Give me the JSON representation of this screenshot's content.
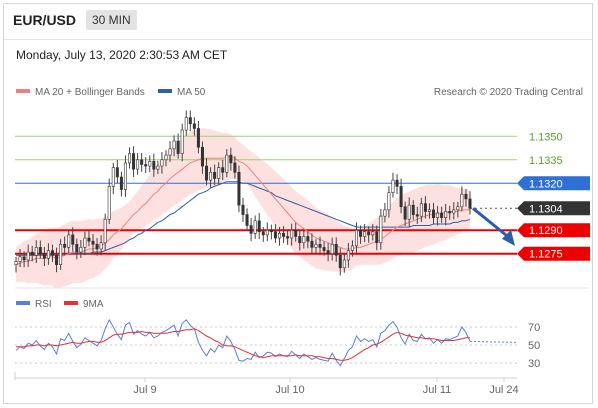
{
  "header": {
    "pair": "EUR/USD",
    "timeframe": "30 MIN",
    "datetime": "Monday, July 13, 2020 2:30:53 AM CET"
  },
  "colors": {
    "ma20": "#f08080",
    "ma50": "#2f5fa8",
    "bands": "#fcd5d5",
    "green": "#9cd36f",
    "blue_line": "#2f6fd6",
    "red_line": "#ee0000",
    "arrow": "#2a5fa8",
    "rsi": "#5a7fd8",
    "rsi_ma": "#e33333"
  },
  "chart_data": [
    {
      "type": "candlestick",
      "legend": [
        "MA 20 + Bollinger Bands",
        "MA 50"
      ],
      "credit": "Research © 2020 Trading Central",
      "x_ticks": [
        "Jul 9",
        "Jul 10",
        "Jul 11",
        "Jul 24"
      ],
      "ylim": [
        1.1255,
        1.137
      ],
      "levels": [
        {
          "value": 1.135,
          "label": "1.1350",
          "kind": "resistance-green"
        },
        {
          "value": 1.1335,
          "label": "1.1335",
          "kind": "resistance-green"
        },
        {
          "value": 1.132,
          "label": "1.1320",
          "kind": "pivot"
        },
        {
          "value": 1.1304,
          "label": "1.1304",
          "kind": "last"
        },
        {
          "value": 1.129,
          "label": "1.1290",
          "kind": "support"
        },
        {
          "value": 1.1275,
          "label": "1.1275",
          "kind": "support"
        }
      ],
      "close": [
        1.127,
        1.1273,
        1.1271,
        1.1276,
        1.1274,
        1.1279,
        1.1275,
        1.1272,
        1.1277,
        1.1274,
        1.1268,
        1.1281,
        1.1279,
        1.1287,
        1.1281,
        1.1276,
        1.1279,
        1.1285,
        1.1283,
        1.1281,
        1.1278,
        1.1282,
        1.1297,
        1.1318,
        1.133,
        1.1324,
        1.1316,
        1.1333,
        1.1339,
        1.1329,
        1.1335,
        1.1332,
        1.1331,
        1.1334,
        1.1329,
        1.1331,
        1.1335,
        1.1338,
        1.1342,
        1.1347,
        1.1339,
        1.1354,
        1.1362,
        1.1358,
        1.1355,
        1.1343,
        1.1331,
        1.1322,
        1.1327,
        1.1323,
        1.133,
        1.1327,
        1.1338,
        1.1333,
        1.1327,
        1.1306,
        1.13,
        1.1293,
        1.1288,
        1.1296,
        1.1289,
        1.1287,
        1.129,
        1.1289,
        1.1285,
        1.1288,
        1.1286,
        1.1285,
        1.129,
        1.1286,
        1.1282,
        1.1286,
        1.1283,
        1.1279,
        1.1281,
        1.1279,
        1.1277,
        1.1275,
        1.1281,
        1.1274,
        1.1266,
        1.1271,
        1.1277,
        1.128,
        1.129,
        1.1286,
        1.1289,
        1.1287,
        1.1289,
        1.1282,
        1.1299,
        1.1303,
        1.1314,
        1.1322,
        1.1318,
        1.1305,
        1.1297,
        1.1306,
        1.13,
        1.1299,
        1.1307,
        1.1302,
        1.1303,
        1.1298,
        1.1301,
        1.1298,
        1.1302,
        1.1301,
        1.1303,
        1.1305,
        1.1313,
        1.131,
        1.1304
      ],
      "ma20": [
        1.1268,
        1.1269,
        1.127,
        1.127,
        1.1271,
        1.1272,
        1.1272,
        1.1272,
        1.1273,
        1.1273,
        1.1272,
        1.1273,
        1.1274,
        1.1275,
        1.1276,
        1.1276,
        1.1276,
        1.1277,
        1.1278,
        1.1278,
        1.1279,
        1.128,
        1.1282,
        1.1284,
        1.1287,
        1.1289,
        1.1291,
        1.1294,
        1.1297,
        1.13,
        1.1302,
        1.1305,
        1.1307,
        1.131,
        1.1313,
        1.1315,
        1.1318,
        1.132,
        1.1323,
        1.1325,
        1.1327,
        1.1329,
        1.1331,
        1.1333,
        1.1334,
        1.1335,
        1.1336,
        1.1336,
        1.1336,
        1.1336,
        1.1336,
        1.1336,
        1.1337,
        1.1337,
        1.1336,
        1.1334,
        1.1333,
        1.1331,
        1.1328,
        1.1325,
        1.1322,
        1.1319,
        1.1316,
        1.1313,
        1.131,
        1.1307,
        1.1304,
        1.1301,
        1.1298,
        1.1295,
        1.1293,
        1.1291,
        1.1289,
        1.1287,
        1.1285,
        1.1284,
        1.1283,
        1.1282,
        1.1281,
        1.128,
        1.1279,
        1.1278,
        1.1278,
        1.1278,
        1.1279,
        1.1279,
        1.128,
        1.1281,
        1.1282,
        1.1283,
        1.1284,
        1.1286,
        1.1288,
        1.129,
        1.1292,
        1.1293,
        1.1294,
        1.1295,
        1.1296,
        1.1297,
        1.1298,
        1.1299,
        1.13,
        1.13,
        1.1301,
        1.1301,
        1.1301,
        1.1302,
        1.1302,
        1.1302,
        1.1303,
        1.1303,
        1.1303
      ],
      "ma50": [
        1.1274,
        1.1274,
        1.1274,
        1.1274,
        1.1274,
        1.1274,
        1.1274,
        1.1274,
        1.1274,
        1.1274,
        1.1274,
        1.1274,
        1.1274,
        1.1275,
        1.1275,
        1.1275,
        1.1275,
        1.1275,
        1.1275,
        1.1276,
        1.1276,
        1.1276,
        1.1277,
        1.1278,
        1.1279,
        1.128,
        1.1281,
        1.1282,
        1.1284,
        1.1285,
        1.1287,
        1.1288,
        1.129,
        1.1291,
        1.1293,
        1.1295,
        1.1296,
        1.1298,
        1.13,
        1.1301,
        1.1303,
        1.1305,
        1.1307,
        1.1309,
        1.1311,
        1.1313,
        1.1314,
        1.1315,
        1.1317,
        1.1318,
        1.1319,
        1.132,
        1.1321,
        1.1321,
        1.1321,
        1.1321,
        1.132,
        1.132,
        1.1319,
        1.1318,
        1.1317,
        1.1316,
        1.1315,
        1.1314,
        1.1312,
        1.1311,
        1.131,
        1.1309,
        1.1308,
        1.1307,
        1.1306,
        1.1305,
        1.1304,
        1.1303,
        1.1302,
        1.1301,
        1.13,
        1.1299,
        1.1298,
        1.1297,
        1.1296,
        1.1295,
        1.1294,
        1.1293,
        1.1292,
        1.1292,
        1.1292,
        1.1292,
        1.1292,
        1.1292,
        1.1292,
        1.1292,
        1.1292,
        1.1292,
        1.1292,
        1.1292,
        1.1292,
        1.1292,
        1.1293,
        1.1293,
        1.1293,
        1.1293,
        1.1293,
        1.1294,
        1.1294,
        1.1294,
        1.1294,
        1.1294,
        1.1295,
        1.1295,
        1.1296,
        1.1296,
        1.1297
      ],
      "arrow": {
        "from": 1.1304,
        "to": 1.128,
        "direction": "down"
      }
    },
    {
      "type": "line",
      "legend": [
        "RSI",
        "9MA"
      ],
      "ylim": [
        20,
        80
      ],
      "y_ticks": [
        "70",
        "50",
        "30"
      ],
      "series": [
        {
          "name": "RSI",
          "values": [
            44,
            48,
            46,
            52,
            50,
            55,
            49,
            45,
            52,
            48,
            40,
            57,
            55,
            63,
            54,
            47,
            51,
            58,
            55,
            52,
            49,
            55,
            68,
            78,
            70,
            62,
            56,
            72,
            75,
            62,
            66,
            62,
            60,
            64,
            58,
            60,
            64,
            66,
            69,
            72,
            60,
            74,
            78,
            72,
            68,
            53,
            44,
            38,
            46,
            42,
            50,
            47,
            60,
            54,
            45,
            33,
            32,
            35,
            34,
            42,
            36,
            38,
            42,
            41,
            37,
            40,
            38,
            37,
            43,
            39,
            35,
            40,
            37,
            34,
            36,
            34,
            33,
            32,
            41,
            33,
            27,
            35,
            44,
            48,
            60,
            54,
            57,
            54,
            56,
            48,
            63,
            66,
            72,
            76,
            70,
            58,
            51,
            62,
            55,
            54,
            62,
            57,
            58,
            52,
            56,
            52,
            57,
            56,
            58,
            60,
            70,
            64,
            54
          ]
        },
        {
          "name": "9MA",
          "values": [
            48,
            48,
            48,
            49,
            49,
            50,
            50,
            49,
            50,
            50,
            49,
            50,
            51,
            52,
            53,
            52,
            52,
            53,
            54,
            54,
            53,
            53,
            55,
            58,
            61,
            62,
            62,
            63,
            64,
            64,
            64,
            65,
            64,
            64,
            63,
            63,
            63,
            63,
            64,
            65,
            65,
            66,
            67,
            67,
            68,
            66,
            63,
            60,
            58,
            55,
            53,
            50,
            49,
            49,
            48,
            46,
            44,
            42,
            40,
            38,
            37,
            36,
            37,
            38,
            38,
            38,
            38,
            38,
            38,
            39,
            38,
            38,
            38,
            38,
            37,
            37,
            36,
            35,
            35,
            34,
            33,
            33,
            34,
            36,
            39,
            42,
            45,
            47,
            50,
            51,
            53,
            56,
            59,
            62,
            64,
            63,
            61,
            60,
            59,
            58,
            58,
            57,
            57,
            57,
            56,
            55,
            55,
            55,
            55,
            56,
            57,
            58,
            58
          ]
        }
      ]
    }
  ]
}
